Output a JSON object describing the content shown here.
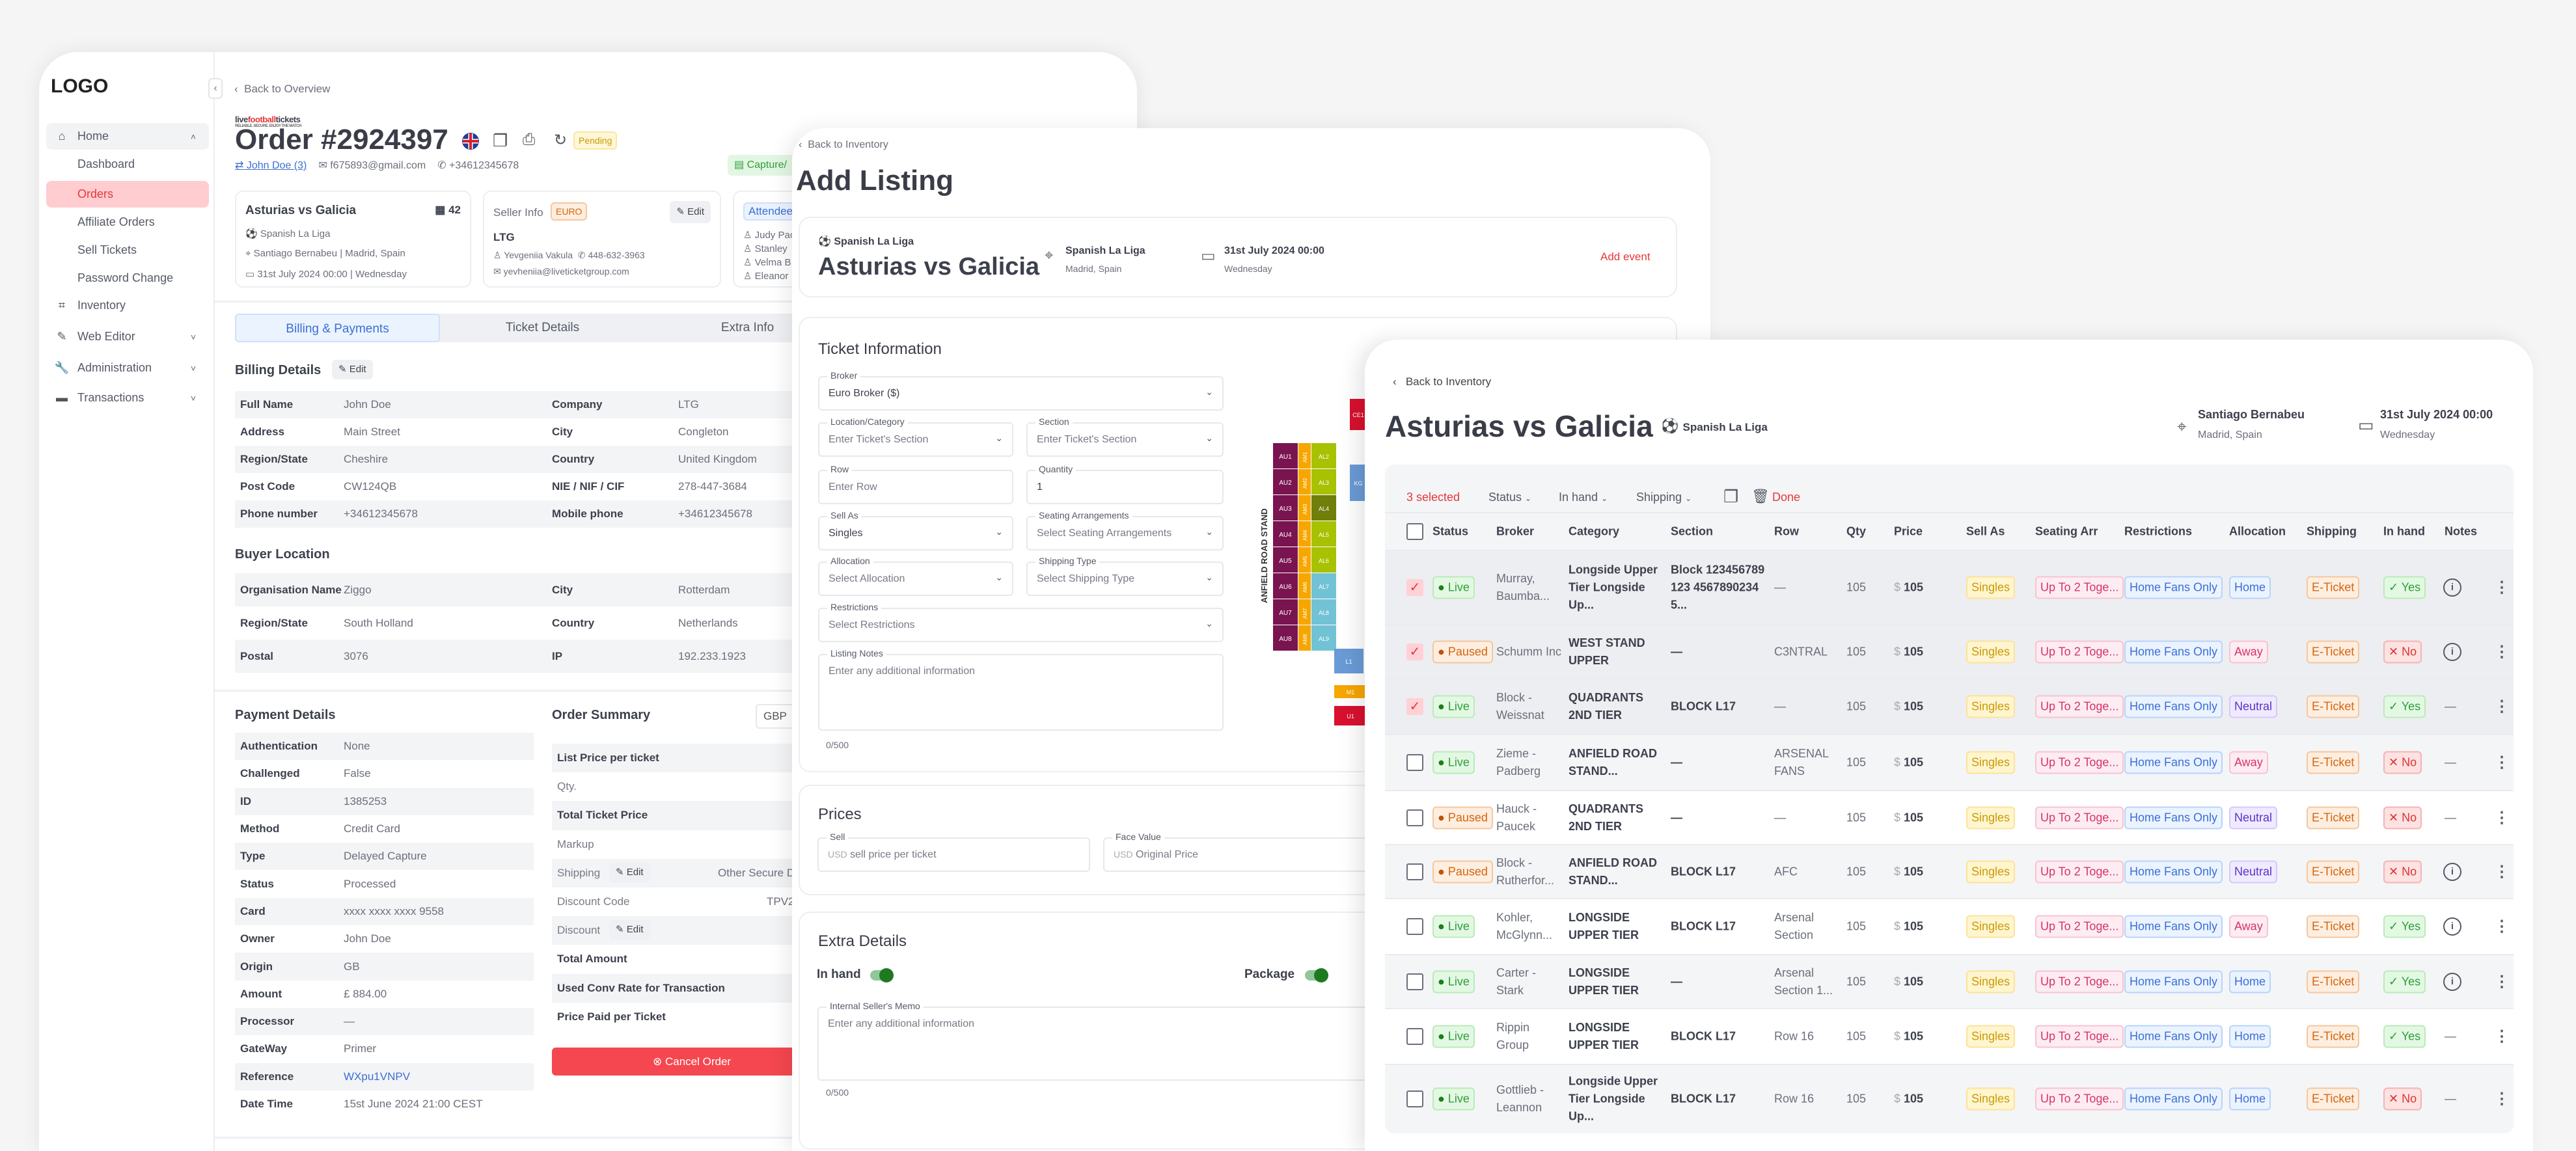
{
  "order_panel": {
    "sidebar": {
      "logo": "LOGO",
      "home": {
        "label": "Home",
        "icon": "home-icon"
      },
      "home_children": [
        "Dashboard",
        "Orders",
        "Affiliate Orders",
        "Sell Tickets",
        "Password Change"
      ],
      "active_child": "Orders",
      "items": [
        {
          "label": "Inventory",
          "icon": "ticket-icon"
        },
        {
          "label": "Web Editor",
          "icon": "pencil-icon"
        },
        {
          "label": "Administration",
          "icon": "wrench-icon"
        },
        {
          "label": "Transactions",
          "icon": "credit-card-icon"
        }
      ]
    },
    "back_label": "Back to Overview",
    "brand": {
      "name_a": "live",
      "name_b": "football",
      "name_c": "tickets",
      "tagline": "RELIABLE. SECURE. ENJOY THE MATCH"
    },
    "title": "Order #2924397",
    "status": "Pending",
    "customer": {
      "name": "John Doe (3)",
      "email": "f675893@gmail.com",
      "phone": "+34612345678"
    },
    "payment_badge": "Capture/",
    "event_card": {
      "title": "Asturias vs Galicia",
      "count": "42",
      "league": "Spanish La Liga",
      "venue": "Santiago Bernabeu | Madrid, Spain",
      "date": "31st July 2024 00:00 | Wednesday"
    },
    "seller_card": {
      "title": "Seller Info",
      "currency": "EURO",
      "edit": "Edit",
      "company": "LTG",
      "contact": "Yevgeniia Vakula",
      "phone": "448-632-3963",
      "email": "yevheniia@liveticketgroup.com"
    },
    "attendee_card": {
      "title": "Attendee",
      "names": [
        "Judy Pac",
        "Stanley",
        "Velma B",
        "Eleanor"
      ]
    },
    "tabs": [
      "Billing & Payments",
      "Ticket Details",
      "Extra Info"
    ],
    "billing": {
      "title": "Billing Details",
      "edit": "Edit",
      "rows": [
        [
          "Full Name",
          "John Doe",
          "Company",
          "LTG"
        ],
        [
          "Address",
          "Main Street",
          "City",
          "Congleton"
        ],
        [
          "Region/State",
          "Cheshire",
          "Country",
          "United Kingdom"
        ],
        [
          "Post Code",
          "CW124QB",
          "NIE / NIF / CIF",
          "278-447-3684"
        ],
        [
          "Phone number",
          "+34612345678",
          "Mobile phone",
          "+34612345678"
        ]
      ]
    },
    "buyer_location": {
      "title": "Buyer Location",
      "rows": [
        [
          "Organisation Name",
          "Ziggo",
          "City",
          "Rotterdam"
        ],
        [
          "Region/State",
          "South Holland",
          "Country",
          "Netherlands"
        ],
        [
          "Postal",
          "3076",
          "IP",
          "192.233.1923"
        ]
      ]
    },
    "payment": {
      "title": "Payment Details",
      "rows": [
        [
          "Authentication",
          "None"
        ],
        [
          "Challenged",
          "False"
        ],
        [
          "ID",
          "1385253"
        ],
        [
          "Method",
          "Credit Card"
        ],
        [
          "Type",
          "Delayed Capture"
        ],
        [
          "Status",
          "Processed"
        ],
        [
          "Card",
          "xxxx xxxx xxxx 9558"
        ],
        [
          "Owner",
          "John Doe"
        ],
        [
          "Origin",
          "GB"
        ],
        [
          "Amount",
          "£ 884.00"
        ],
        [
          "Processor",
          "—"
        ],
        [
          "GateWay",
          "Primer"
        ],
        [
          "Reference",
          "WXpu1VNPV"
        ],
        [
          "Date Time",
          "15st June 2024 21:00 CEST"
        ]
      ]
    },
    "summary": {
      "title": "Order Summary",
      "currency": "GBP",
      "edit": "Edit",
      "cancel": "Cancel Order",
      "rows": [
        {
          "label": "List Price per ticket",
          "bold": true,
          "value": ""
        },
        {
          "label": "Qty.",
          "bold": false,
          "value": ""
        },
        {
          "label": "Total Ticket Price",
          "bold": true,
          "value": ""
        },
        {
          "label": "Markup",
          "bold": false,
          "value": ""
        },
        {
          "label": "Shipping",
          "bold": false,
          "edit": true,
          "value": "Other Secure Delivery"
        },
        {
          "label": "Discount Code",
          "bold": false,
          "value": "TPV2"
        },
        {
          "label": "Discount",
          "bold": false,
          "edit": true,
          "value": ""
        },
        {
          "label": "Total Amount",
          "bold": true,
          "value": ""
        },
        {
          "label": "Used Conv Rate for Transaction",
          "bold": true,
          "value": ""
        },
        {
          "label": "Price Paid per Ticket",
          "bold": true,
          "value": ""
        }
      ]
    }
  },
  "listing_panel": {
    "back_label": "Back to Inventory",
    "title": "Add Listing",
    "event": {
      "league": "Spanish La Liga",
      "name": "Asturias vs Galicia",
      "venue": "Spanish La Liga",
      "city": "Madrid, Spain",
      "date": "31st July 2024 00:00",
      "weekday": "Wednesday",
      "add_event": "Add event"
    },
    "ticket_info": {
      "title": "Ticket Information",
      "broker": {
        "label": "Broker",
        "value": "Euro Broker ($)"
      },
      "location": {
        "label": "Location/Category",
        "placeholder": "Enter Ticket's Section"
      },
      "section": {
        "label": "Section",
        "placeholder": "Enter Ticket's Section"
      },
      "row": {
        "label": "Row",
        "placeholder": "Enter Row"
      },
      "quantity": {
        "label": "Quantity",
        "value": "1"
      },
      "sell_as": {
        "label": "Sell As",
        "value": "Singles"
      },
      "seating": {
        "label": "Seating Arrangements",
        "placeholder": "Select Seating Arrangements"
      },
      "allocation": {
        "label": "Allocation",
        "placeholder": "Select Allocation"
      },
      "shipping": {
        "label": "Shipping Type",
        "placeholder": "Select Shipping Type"
      },
      "restrictions": {
        "label": "Restrictions",
        "placeholder": "Select Restrictions"
      },
      "notes": {
        "label": "Listing Notes",
        "placeholder": "Enter any additional information",
        "counter": "0/500"
      }
    },
    "map": {
      "stand_label": "ANFIELD ROAD STAND",
      "upper": [
        "AU1",
        "AU2",
        "AU3",
        "AU4",
        "AU5",
        "AU6",
        "AU7",
        "AU8"
      ],
      "middle": [
        "AM1",
        "AM2",
        "AM3",
        "AM4",
        "AM5",
        "AM6",
        "AM7",
        "AM8"
      ],
      "lower": [
        "AL2",
        "AL3",
        "AL4",
        "AL5",
        "AL6",
        "AL7",
        "AL8",
        "AL9"
      ],
      "other": [
        "CE1",
        "KG",
        "L1",
        "M1",
        "U1"
      ],
      "colors": {
        "upper": "#7a1450",
        "middle": "#f7a600",
        "lower": "#a8c100",
        "lower_dark": "#6f7f0a",
        "lower_blue": "#72c2d6",
        "blue": "#6a9bd6",
        "red": "#d9102e"
      }
    },
    "prices": {
      "title": "Prices",
      "sell": {
        "label": "Sell",
        "currency": "USD",
        "placeholder": "sell price per ticket"
      },
      "face": {
        "label": "Face Value",
        "currency": "USD",
        "placeholder": "Original Price"
      }
    },
    "extra": {
      "title": "Extra Details",
      "in_hand": {
        "label": "In hand",
        "on": true
      },
      "package": {
        "label": "Package",
        "on": true
      },
      "memo": {
        "label": "Internal Seller's Memo",
        "placeholder": "Enter any additional information",
        "counter": "0/500"
      }
    }
  },
  "inventory_panel": {
    "back_label": "Back to Inventory",
    "title": "Asturias vs Galicia",
    "league": "Spanish La Liga",
    "venue": "Santiago Bernabeu",
    "city": "Madrid, Spain",
    "date": "31st July 2024 00:00",
    "weekday": "Wednesday",
    "toolbar": {
      "selected": "3 selected",
      "status": "Status",
      "in_hand": "In hand",
      "shipping": "Shipping",
      "done": "Done"
    },
    "columns": [
      "Status",
      "Broker",
      "Category",
      "Section",
      "Row",
      "Qty",
      "Price",
      "Sell As",
      "Seating Arr",
      "Restrictions",
      "Allocation",
      "Shipping",
      "In hand",
      "Notes"
    ],
    "rows": [
      {
        "selected": true,
        "status": "Live",
        "broker": "Murray, Baumba...",
        "category": "Longside Upper Tier Longside Up...",
        "section": "Block 123456789123 45678902345...",
        "row": "—",
        "qty": "105",
        "currency": "$",
        "price": "105",
        "sell_as": "Singles",
        "seating": "Up To 2 Toge...",
        "restrictions": "Home Fans Only",
        "allocation": "Home",
        "shipping": "E-Ticket",
        "in_hand": "Yes",
        "notes": "info"
      },
      {
        "selected": true,
        "status": "Paused",
        "broker": "Schumm Inc",
        "category": "WEST STAND UPPER",
        "section": "—",
        "row": "C3NTRAL",
        "qty": "105",
        "currency": "$",
        "price": "105",
        "sell_as": "Singles",
        "seating": "Up To 2 Toge...",
        "restrictions": "Home Fans Only",
        "allocation": "Away",
        "shipping": "E-Ticket",
        "in_hand": "No",
        "notes": "info"
      },
      {
        "selected": true,
        "status": "Live",
        "broker": "Block - Weissnat",
        "category": "QUADRANTS 2ND TIER",
        "section": "BLOCK L17",
        "row": "—",
        "qty": "105",
        "currency": "$",
        "price": "105",
        "sell_as": "Singles",
        "seating": "Up To 2 Toge...",
        "restrictions": "Home Fans Only",
        "allocation": "Neutral",
        "shipping": "E-Ticket",
        "in_hand": "Yes",
        "notes": "—"
      },
      {
        "selected": false,
        "status": "Live",
        "broker": "Zieme - Padberg",
        "category": "ANFIELD ROAD STAND...",
        "section": "—",
        "row": "ARSENAL FANS",
        "qty": "105",
        "currency": "$",
        "price": "105",
        "sell_as": "Singles",
        "seating": "Up To 2 Toge...",
        "restrictions": "Home Fans Only",
        "allocation": "Away",
        "shipping": "E-Ticket",
        "in_hand": "No",
        "notes": "—"
      },
      {
        "selected": false,
        "status": "Paused",
        "broker": "Hauck - Paucek",
        "category": "QUADRANTS 2ND TIER",
        "section": "—",
        "row": "—",
        "qty": "105",
        "currency": "$",
        "price": "105",
        "sell_as": "Singles",
        "seating": "Up To 2 Toge...",
        "restrictions": "Home Fans Only",
        "allocation": "Neutral",
        "shipping": "E-Ticket",
        "in_hand": "No",
        "notes": "—"
      },
      {
        "selected": false,
        "status": "Paused",
        "broker": "Block - Rutherfor...",
        "category": "ANFIELD ROAD STAND...",
        "section": "BLOCK L17",
        "row": "AFC",
        "qty": "105",
        "currency": "$",
        "price": "105",
        "sell_as": "Singles",
        "seating": "Up To 2 Toge...",
        "restrictions": "Home Fans Only",
        "allocation": "Neutral",
        "shipping": "E-Ticket",
        "in_hand": "No",
        "notes": "info"
      },
      {
        "selected": false,
        "status": "Live",
        "broker": "Kohler, McGlynn...",
        "category": "LONGSIDE UPPER TIER",
        "section": "BLOCK L17",
        "row": "Arsenal Section",
        "qty": "105",
        "currency": "$",
        "price": "105",
        "sell_as": "Singles",
        "seating": "Up To 2 Toge...",
        "restrictions": "Home Fans Only",
        "allocation": "Away",
        "shipping": "E-Ticket",
        "in_hand": "Yes",
        "notes": "info"
      },
      {
        "selected": false,
        "status": "Live",
        "broker": "Carter - Stark",
        "category": "LONGSIDE UPPER TIER",
        "section": "—",
        "row": "Arsenal Section 1...",
        "qty": "105",
        "currency": "$",
        "price": "105",
        "sell_as": "Singles",
        "seating": "Up To 2 Toge...",
        "restrictions": "Home Fans Only",
        "allocation": "Home",
        "shipping": "E-Ticket",
        "in_hand": "Yes",
        "notes": "info"
      },
      {
        "selected": false,
        "status": "Live",
        "broker": "Rippin Group",
        "category": "LONGSIDE UPPER TIER",
        "section": "BLOCK L17",
        "row": "Row 16",
        "qty": "105",
        "currency": "$",
        "price": "105",
        "sell_as": "Singles",
        "seating": "Up To 2 Toge...",
        "restrictions": "Home Fans Only",
        "allocation": "Home",
        "shipping": "E-Ticket",
        "in_hand": "Yes",
        "notes": "—"
      },
      {
        "selected": false,
        "status": "Live",
        "broker": "Gottlieb - Leannon",
        "category": "Longside Upper Tier Longside Up...",
        "section": "BLOCK L17",
        "row": "Row 16",
        "qty": "105",
        "currency": "$",
        "price": "105",
        "sell_as": "Singles",
        "seating": "Up To 2 Toge...",
        "restrictions": "Home Fans Only",
        "allocation": "Home",
        "shipping": "E-Ticket",
        "in_hand": "No",
        "notes": "—"
      }
    ]
  },
  "colors": {
    "accent_red": "#e5383b",
    "link_blue": "#3b6fd4",
    "live_green": "#2e9e3a",
    "paused_orange": "#d4650f"
  }
}
